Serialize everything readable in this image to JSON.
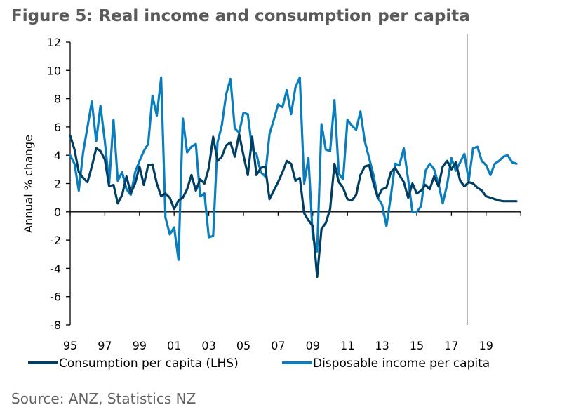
{
  "chart_data": {
    "type": "line",
    "title": "Figure 5: Real income and consumption per capita",
    "ylabel": "Annual % change",
    "xlabel": "",
    "ylim": [
      -8,
      12
    ],
    "xlim": [
      1995,
      2021
    ],
    "yticks": [
      12,
      10,
      8,
      6,
      4,
      2,
      0,
      -2,
      -4,
      -6,
      -8
    ],
    "ytick_labels": [
      "12",
      "10",
      "8",
      "6",
      "4",
      "2",
      "0",
      "-2",
      "-4",
      "-6",
      "-8"
    ],
    "xticks": [
      1995,
      1997,
      1999,
      2001,
      2003,
      2005,
      2007,
      2009,
      2011,
      2013,
      2015,
      2017,
      2019
    ],
    "xtick_labels": [
      "95",
      "97",
      "99",
      "01",
      "03",
      "05",
      "07",
      "09",
      "11",
      "13",
      "15",
      "17",
      "19"
    ],
    "minor_xticks": [
      2021
    ],
    "vline_x": 2017.9,
    "grid": false,
    "legend_position": "bottom",
    "x_start": 1995,
    "x_step": 0.25,
    "series": [
      {
        "name": "Consumption per capita (LHS)",
        "color": "#003f63",
        "values": [
          5.4,
          4.4,
          2.8,
          2.4,
          2.1,
          3.2,
          4.5,
          4.3,
          3.7,
          1.8,
          1.9,
          0.6,
          1.2,
          2.5,
          1.3,
          2.0,
          3.2,
          1.9,
          3.3,
          3.35,
          2.0,
          1.1,
          1.3,
          1.0,
          0.2,
          0.8,
          1.0,
          1.6,
          2.6,
          1.5,
          2.3,
          2.0,
          3.1,
          5.3,
          3.6,
          3.9,
          4.7,
          4.9,
          3.9,
          5.5,
          4.0,
          2.6,
          5.3,
          2.6,
          3.1,
          3.2,
          0.9,
          1.5,
          2.1,
          2.8,
          3.6,
          3.4,
          2.2,
          2.4,
          -0.1,
          -0.6,
          -1.0,
          -4.6,
          -1.2,
          -0.8,
          0.2,
          3.4,
          2.1,
          1.7,
          0.9,
          0.8,
          1.2,
          2.6,
          3.2,
          3.3,
          2.0,
          1.0,
          1.6,
          1.7,
          2.8,
          3.1,
          2.6,
          2.1,
          1.0,
          2.0,
          1.3,
          1.5,
          1.9,
          1.6,
          2.5,
          1.8,
          3.2,
          3.6,
          3.0,
          3.5,
          2.2,
          1.8,
          2.1,
          2.0,
          1.7,
          1.5,
          1.1,
          1.0,
          0.9,
          0.8,
          0.75,
          0.75,
          0.75,
          0.75
        ]
      },
      {
        "name": "Disposable income per capita",
        "color": "#0a7ebd",
        "values": [
          4.0,
          3.4,
          1.5,
          4.2,
          6.0,
          7.8,
          5.0,
          7.5,
          5.0,
          2.0,
          6.5,
          2.2,
          2.8,
          1.6,
          1.2,
          2.8,
          3.6,
          4.3,
          4.8,
          8.2,
          6.8,
          9.5,
          -0.4,
          -1.6,
          -1.1,
          -3.4,
          6.6,
          4.2,
          4.6,
          4.8,
          1.1,
          1.3,
          -1.8,
          -1.7,
          4.9,
          6.1,
          8.3,
          9.4,
          5.9,
          5.6,
          7.0,
          6.9,
          4.4,
          4.1,
          2.8,
          2.5,
          5.5,
          6.5,
          7.6,
          7.4,
          8.6,
          6.9,
          8.8,
          9.5,
          2.0,
          3.8,
          -1.8,
          -2.8,
          6.2,
          4.4,
          4.3,
          7.9,
          2.7,
          2.3,
          6.5,
          6.1,
          5.8,
          7.1,
          5.0,
          3.8,
          2.6,
          1.0,
          0.5,
          -1.0,
          1.1,
          3.4,
          3.3,
          4.5,
          2.3,
          0.0,
          0.0,
          0.4,
          2.9,
          3.4,
          3.0,
          2.0,
          0.6,
          1.9,
          3.8,
          2.9,
          3.5,
          4.1,
          2.2,
          4.5,
          4.6,
          3.6,
          3.3,
          2.6,
          3.4,
          3.6,
          3.9,
          4.0,
          3.5,
          3.4
        ]
      }
    ]
  },
  "source": "Source: ANZ, Statistics NZ"
}
